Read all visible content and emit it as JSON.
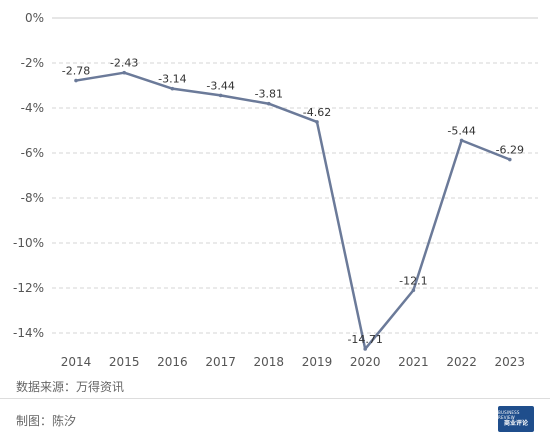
{
  "chart_data": {
    "type": "line",
    "categories": [
      "2014",
      "2015",
      "2016",
      "2017",
      "2018",
      "2019",
      "2020",
      "2021",
      "2022",
      "2023"
    ],
    "values": [
      -2.78,
      -2.43,
      -3.14,
      -3.44,
      -3.81,
      -4.62,
      -14.71,
      -12.1,
      -5.44,
      -6.29
    ],
    "data_labels": [
      "-2.78",
      "-2.43",
      "-3.14",
      "-3.44",
      "-3.81",
      "-4.62",
      "-14.71",
      "-12.1",
      "-5.44",
      "-6.29"
    ],
    "yticks": [
      0,
      -2,
      -4,
      -6,
      -8,
      -10,
      -12,
      -14
    ],
    "ytick_labels": [
      "0%",
      "-2%",
      "-4%",
      "-6%",
      "-8%",
      "-10%",
      "-12%",
      "-14%"
    ],
    "ylim": [
      -14.8,
      0
    ],
    "grid": true,
    "line_color": "#6b7a99",
    "title": "",
    "xlabel": "",
    "ylabel": ""
  },
  "footer": {
    "source": "数据来源：万得资讯",
    "credit": "制图：陈汐",
    "logo_text": "商业评论",
    "logo_small_text": "BUSINESS REVIEW"
  }
}
